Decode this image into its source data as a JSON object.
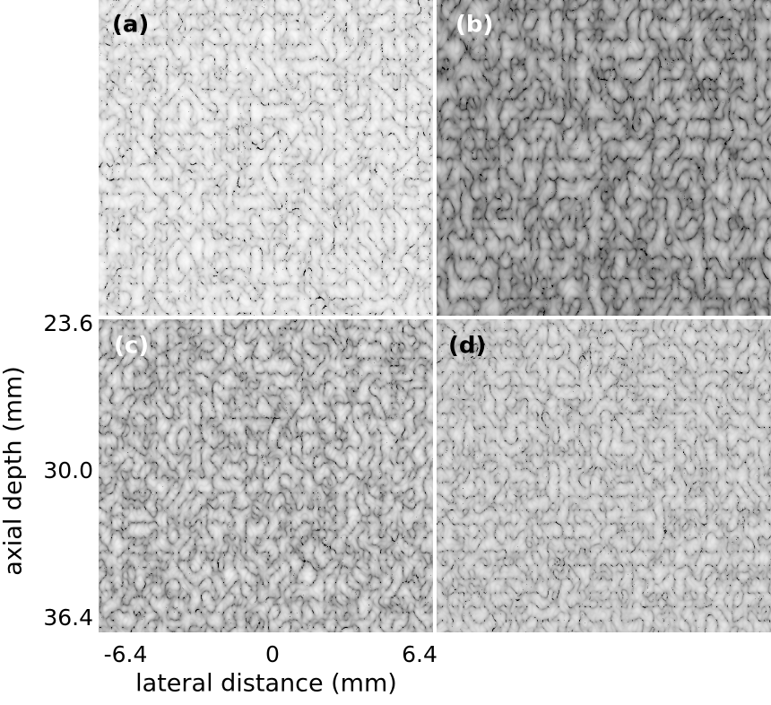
{
  "panels": [
    {
      "label": "(a)",
      "color": "#000000"
    },
    {
      "label": "(b)",
      "color": "#ffffff"
    },
    {
      "label": "(c)",
      "color": "#ffffff"
    },
    {
      "label": "(d)",
      "color": "#000000"
    }
  ],
  "x_axis": {
    "title": "lateral distance (mm)",
    "lim": [
      -6.4,
      6.4
    ],
    "ticks": [
      -6.4,
      0,
      6.4
    ]
  },
  "y_axis": {
    "title": "axial depth (mm)",
    "lim": [
      23.6,
      36.4
    ],
    "ticks": [
      23.6,
      {
        "value": 30,
        "label": "30.0"
      },
      36.4
    ]
  }
}
